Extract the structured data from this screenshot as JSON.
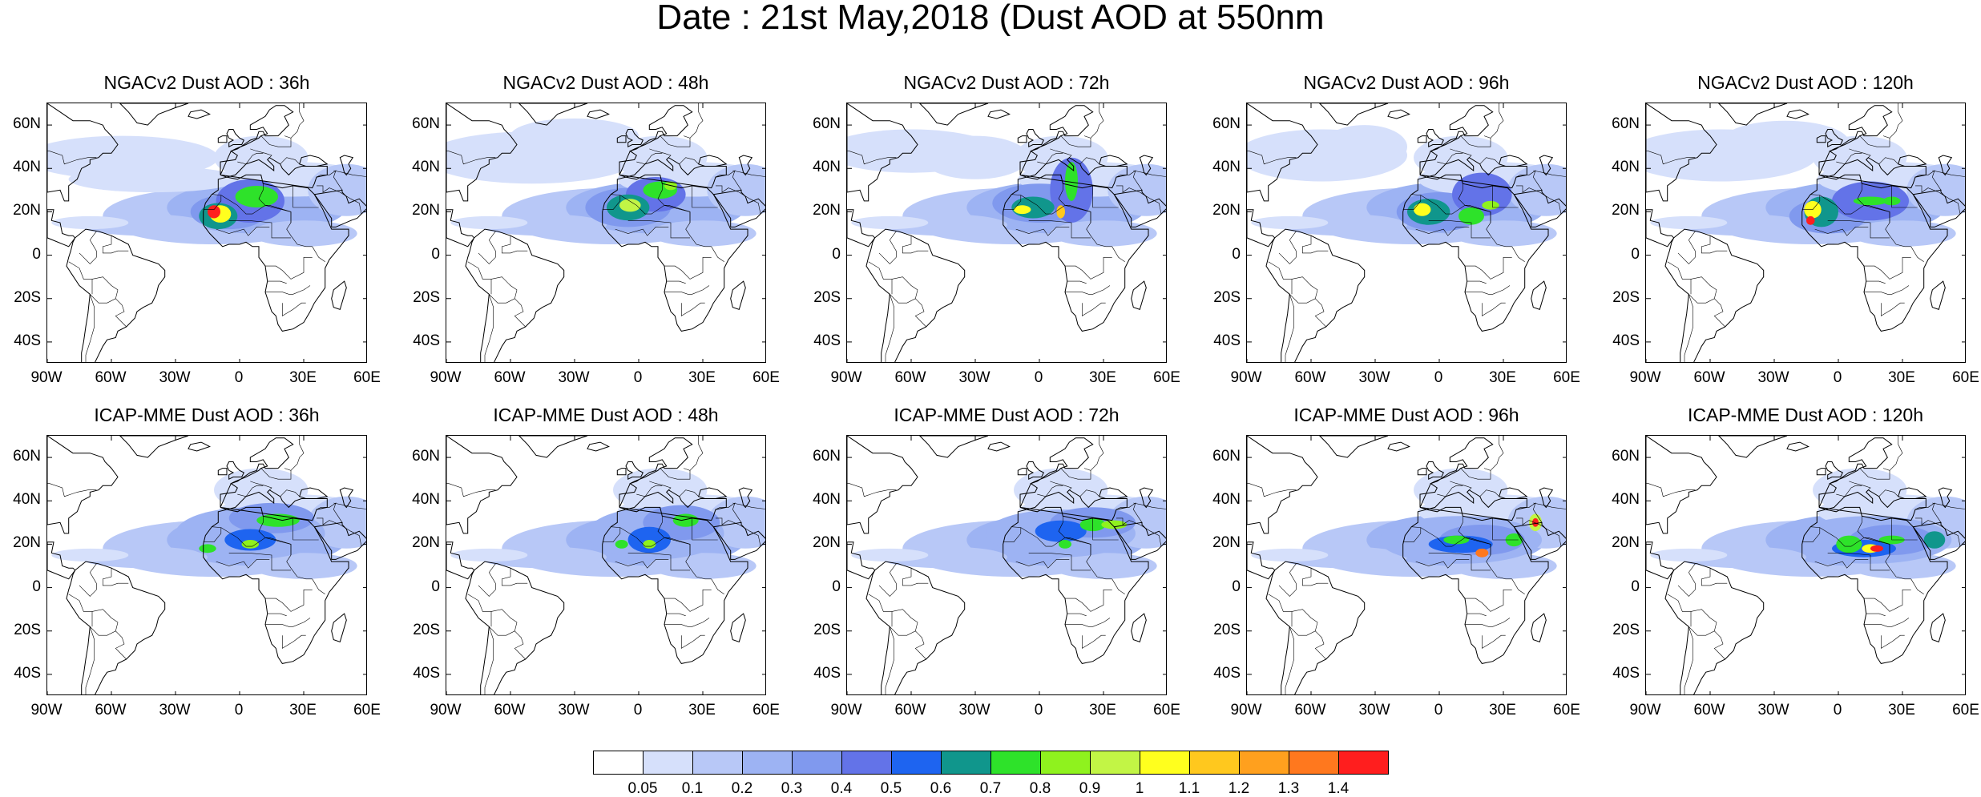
{
  "title": "Date : 21st May,2018 (Dust AOD at 550nm",
  "panels": [
    {
      "title": "NGACv2 Dust AOD : 36h",
      "model": "NGACv2",
      "lead": "36h"
    },
    {
      "title": "NGACv2 Dust AOD : 48h",
      "model": "NGACv2",
      "lead": "48h"
    },
    {
      "title": "NGACv2 Dust AOD : 72h",
      "model": "NGACv2",
      "lead": "72h"
    },
    {
      "title": "NGACv2 Dust AOD : 96h",
      "model": "NGACv2",
      "lead": "96h"
    },
    {
      "title": "NGACv2 Dust AOD : 120h",
      "model": "NGACv2",
      "lead": "120h"
    },
    {
      "title": "ICAP-MME Dust AOD : 36h",
      "model": "ICAP-MME",
      "lead": "36h"
    },
    {
      "title": "ICAP-MME Dust AOD : 48h",
      "model": "ICAP-MME",
      "lead": "48h"
    },
    {
      "title": "ICAP-MME Dust AOD : 72h",
      "model": "ICAP-MME",
      "lead": "72h"
    },
    {
      "title": "ICAP-MME Dust AOD : 96h",
      "model": "ICAP-MME",
      "lead": "96h"
    },
    {
      "title": "ICAP-MME Dust AOD : 120h",
      "model": "ICAP-MME",
      "lead": "120h"
    }
  ],
  "lat_ticks": [
    "60N",
    "40N",
    "20N",
    "0",
    "20S",
    "40S"
  ],
  "lon_ticks": [
    "90W",
    "60W",
    "30W",
    "0",
    "30E",
    "60E"
  ],
  "map_extent": {
    "lon": [
      -90,
      60
    ],
    "lat": [
      -50,
      70
    ]
  },
  "colorbar": {
    "labels": [
      "0.05",
      "0.1",
      "0.2",
      "0.3",
      "0.4",
      "0.5",
      "0.6",
      "0.7",
      "0.8",
      "0.9",
      "1",
      "1.1",
      "1.2",
      "1.3",
      "1.4"
    ],
    "colors": [
      "#ffffff",
      "#d6e0fb",
      "#b8c8f7",
      "#9db3f3",
      "#8099ee",
      "#6373e8",
      "#1e64f0",
      "#10968c",
      "#2ee22a",
      "#8ff21e",
      "#c2f545",
      "#ffff1e",
      "#ffc81e",
      "#ffa01e",
      "#ff781e",
      "#ff1e1e"
    ]
  }
}
